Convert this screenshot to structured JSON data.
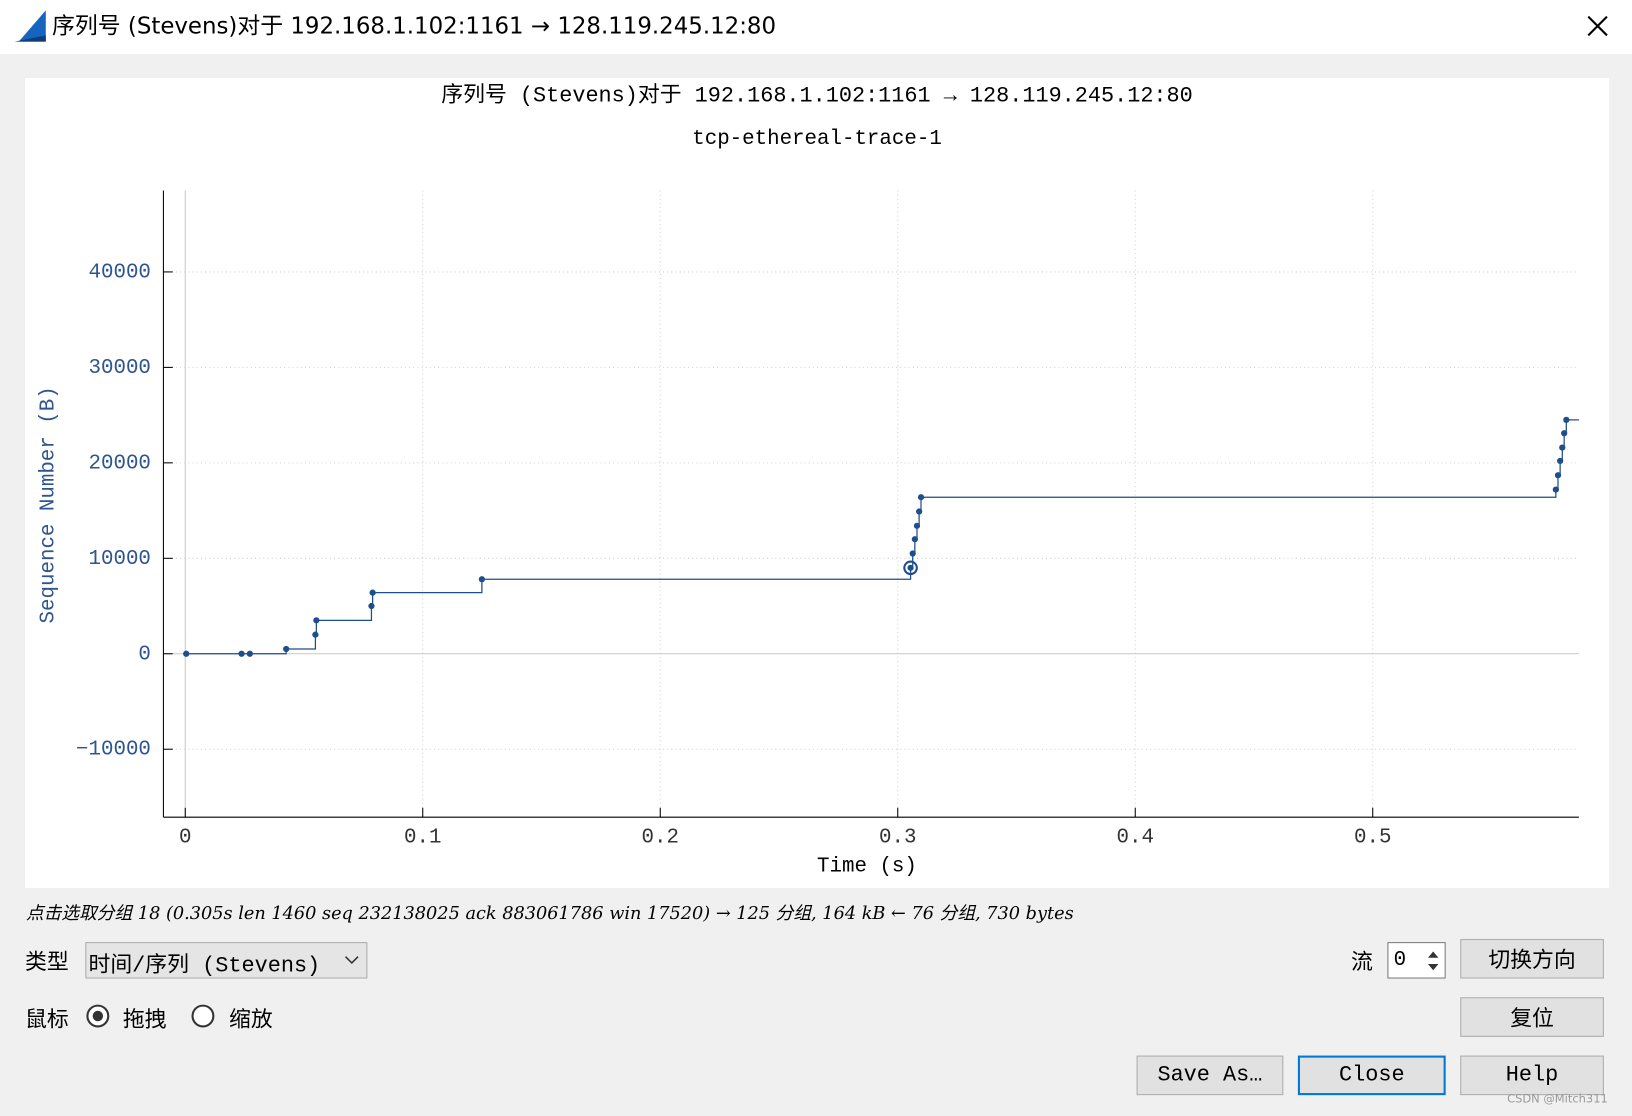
{
  "window": {
    "title": "序列号 (Stevens)对于 192.168.1.102:1161 → 128.119.245.12:80"
  },
  "chart_data": {
    "type": "step",
    "title": "序列号 (Stevens)对于 192.168.1.102:1161 → 128.119.245.12:80",
    "subtitle": "tcp-ethereal-trace-1",
    "x_label": "Time (s)",
    "y_label": "Sequence Number (B)",
    "x": [
      0.0004,
      0.0237,
      0.0272,
      0.0425,
      0.0548,
      0.0552,
      0.0784,
      0.0789,
      0.1249,
      0.3054,
      0.3063,
      0.3072,
      0.3081,
      0.309,
      0.3098,
      0.5771,
      0.578,
      0.5789,
      0.5798,
      0.5806,
      0.5815
    ],
    "series": [
      {
        "color": "#1f4e8c",
        "values": [
          0,
          0,
          0,
          500,
          2000,
          3500,
          5000,
          6400,
          7800,
          9000,
          10500,
          12000,
          13400,
          14900,
          16400,
          17200,
          18700,
          20200,
          21600,
          23100,
          24500
        ]
      }
    ],
    "highlight_index": 9,
    "xlim": [
      -0.0092,
      0.5868
    ],
    "ylim": [
      -17120,
      48530
    ],
    "xticks": [
      0,
      0.1,
      0.2,
      0.3,
      0.4,
      0.5
    ],
    "yticks": [
      {
        "value": -10000,
        "label": "−10000"
      },
      0,
      10000,
      20000,
      30000,
      40000
    ],
    "grid": true
  },
  "status": "点击选取分组 18 (0.305s len 1460 seq 232138025 ack 883061786 win 17520) → 125 分组, 164 kB ← 76 分组, 730 bytes",
  "controls": {
    "type_label": "类型",
    "type_value": "时间/序列 (Stevens)",
    "stream_label": "流",
    "stream_value": "0",
    "mouse_label": "鼠标",
    "drag": "拖拽",
    "zoom": "缩放",
    "switch_direction": "切换方向",
    "reset": "复位",
    "save_as": "Save As…",
    "close": "Close",
    "help": "Help"
  },
  "watermark": "CSDN @Mitch311"
}
